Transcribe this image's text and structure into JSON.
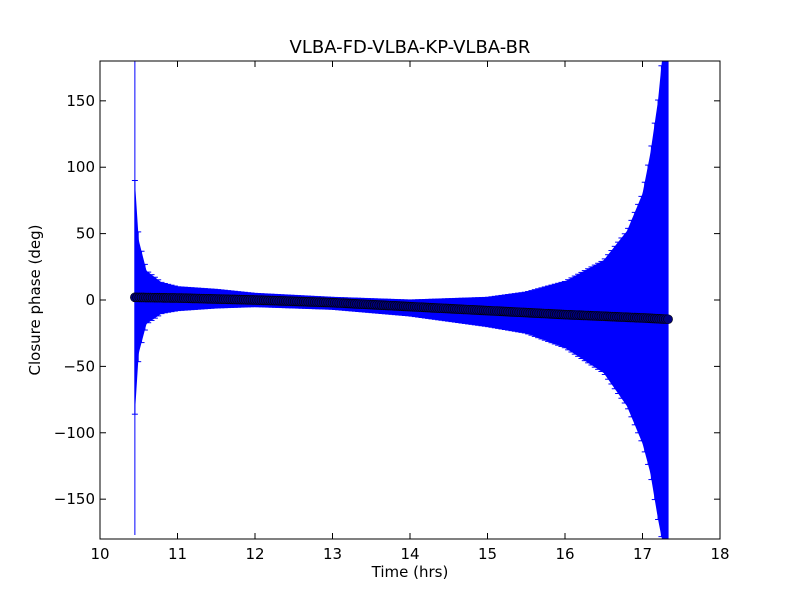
{
  "chart_data": {
    "type": "scatter",
    "title": "VLBA-FD-VLBA-KP-VLBA-BR",
    "xlabel": "Time (hrs)",
    "ylabel": "Closure phase (deg)",
    "xlim": [
      10,
      18
    ],
    "ylim": [
      -180,
      180
    ],
    "x_ticks": [
      10,
      11,
      12,
      13,
      14,
      15,
      16,
      17,
      18
    ],
    "y_ticks": [
      -150,
      -100,
      -50,
      0,
      50,
      100,
      150
    ],
    "x_tick_labels": [
      "10",
      "11",
      "12",
      "13",
      "14",
      "15",
      "16",
      "17",
      "18"
    ],
    "y_tick_labels": [
      "−150",
      "−100",
      "−50",
      "0",
      "50",
      "100",
      "150"
    ],
    "grid": false,
    "legend": "none",
    "series": [
      {
        "x_range": [
          10.45,
          17.33
        ],
        "marker": "circle",
        "marker_color": "#000080",
        "errorbar_color": "#0000ff",
        "phase_curve": [
          {
            "x": 10.45,
            "y": 2
          },
          {
            "x": 11.0,
            "y": 1.5
          },
          {
            "x": 12.0,
            "y": 0
          },
          {
            "x": 13.0,
            "y": -2
          },
          {
            "x": 14.0,
            "y": -5
          },
          {
            "x": 15.0,
            "y": -8
          },
          {
            "x": 16.0,
            "y": -11
          },
          {
            "x": 17.0,
            "y": -13.5
          },
          {
            "x": 17.33,
            "y": -14.5
          }
        ],
        "error_upper_envelope": [
          {
            "x": 10.45,
            "y": 90
          },
          {
            "x": 10.5,
            "y": 45
          },
          {
            "x": 10.6,
            "y": 22
          },
          {
            "x": 10.8,
            "y": 13
          },
          {
            "x": 11.0,
            "y": 10
          },
          {
            "x": 11.5,
            "y": 8
          },
          {
            "x": 12.0,
            "y": 5
          },
          {
            "x": 13.0,
            "y": 2
          },
          {
            "x": 14.0,
            "y": 0
          },
          {
            "x": 15.0,
            "y": 2
          },
          {
            "x": 15.5,
            "y": 6
          },
          {
            "x": 16.0,
            "y": 14
          },
          {
            "x": 16.5,
            "y": 30
          },
          {
            "x": 16.8,
            "y": 52
          },
          {
            "x": 17.0,
            "y": 80
          },
          {
            "x": 17.1,
            "y": 110
          },
          {
            "x": 17.2,
            "y": 150
          },
          {
            "x": 17.25,
            "y": 180
          }
        ],
        "error_lower_envelope": [
          {
            "x": 10.45,
            "y": -86
          },
          {
            "x": 10.5,
            "y": -40
          },
          {
            "x": 10.6,
            "y": -18
          },
          {
            "x": 10.8,
            "y": -10
          },
          {
            "x": 11.0,
            "y": -8
          },
          {
            "x": 11.5,
            "y": -6
          },
          {
            "x": 12.0,
            "y": -5
          },
          {
            "x": 13.0,
            "y": -7
          },
          {
            "x": 14.0,
            "y": -12
          },
          {
            "x": 15.0,
            "y": -20
          },
          {
            "x": 15.5,
            "y": -25
          },
          {
            "x": 16.0,
            "y": -36
          },
          {
            "x": 16.5,
            "y": -55
          },
          {
            "x": 16.8,
            "y": -80
          },
          {
            "x": 17.0,
            "y": -108
          },
          {
            "x": 17.1,
            "y": -130
          },
          {
            "x": 17.2,
            "y": -165
          },
          {
            "x": 17.25,
            "y": -180
          }
        ]
      }
    ]
  }
}
